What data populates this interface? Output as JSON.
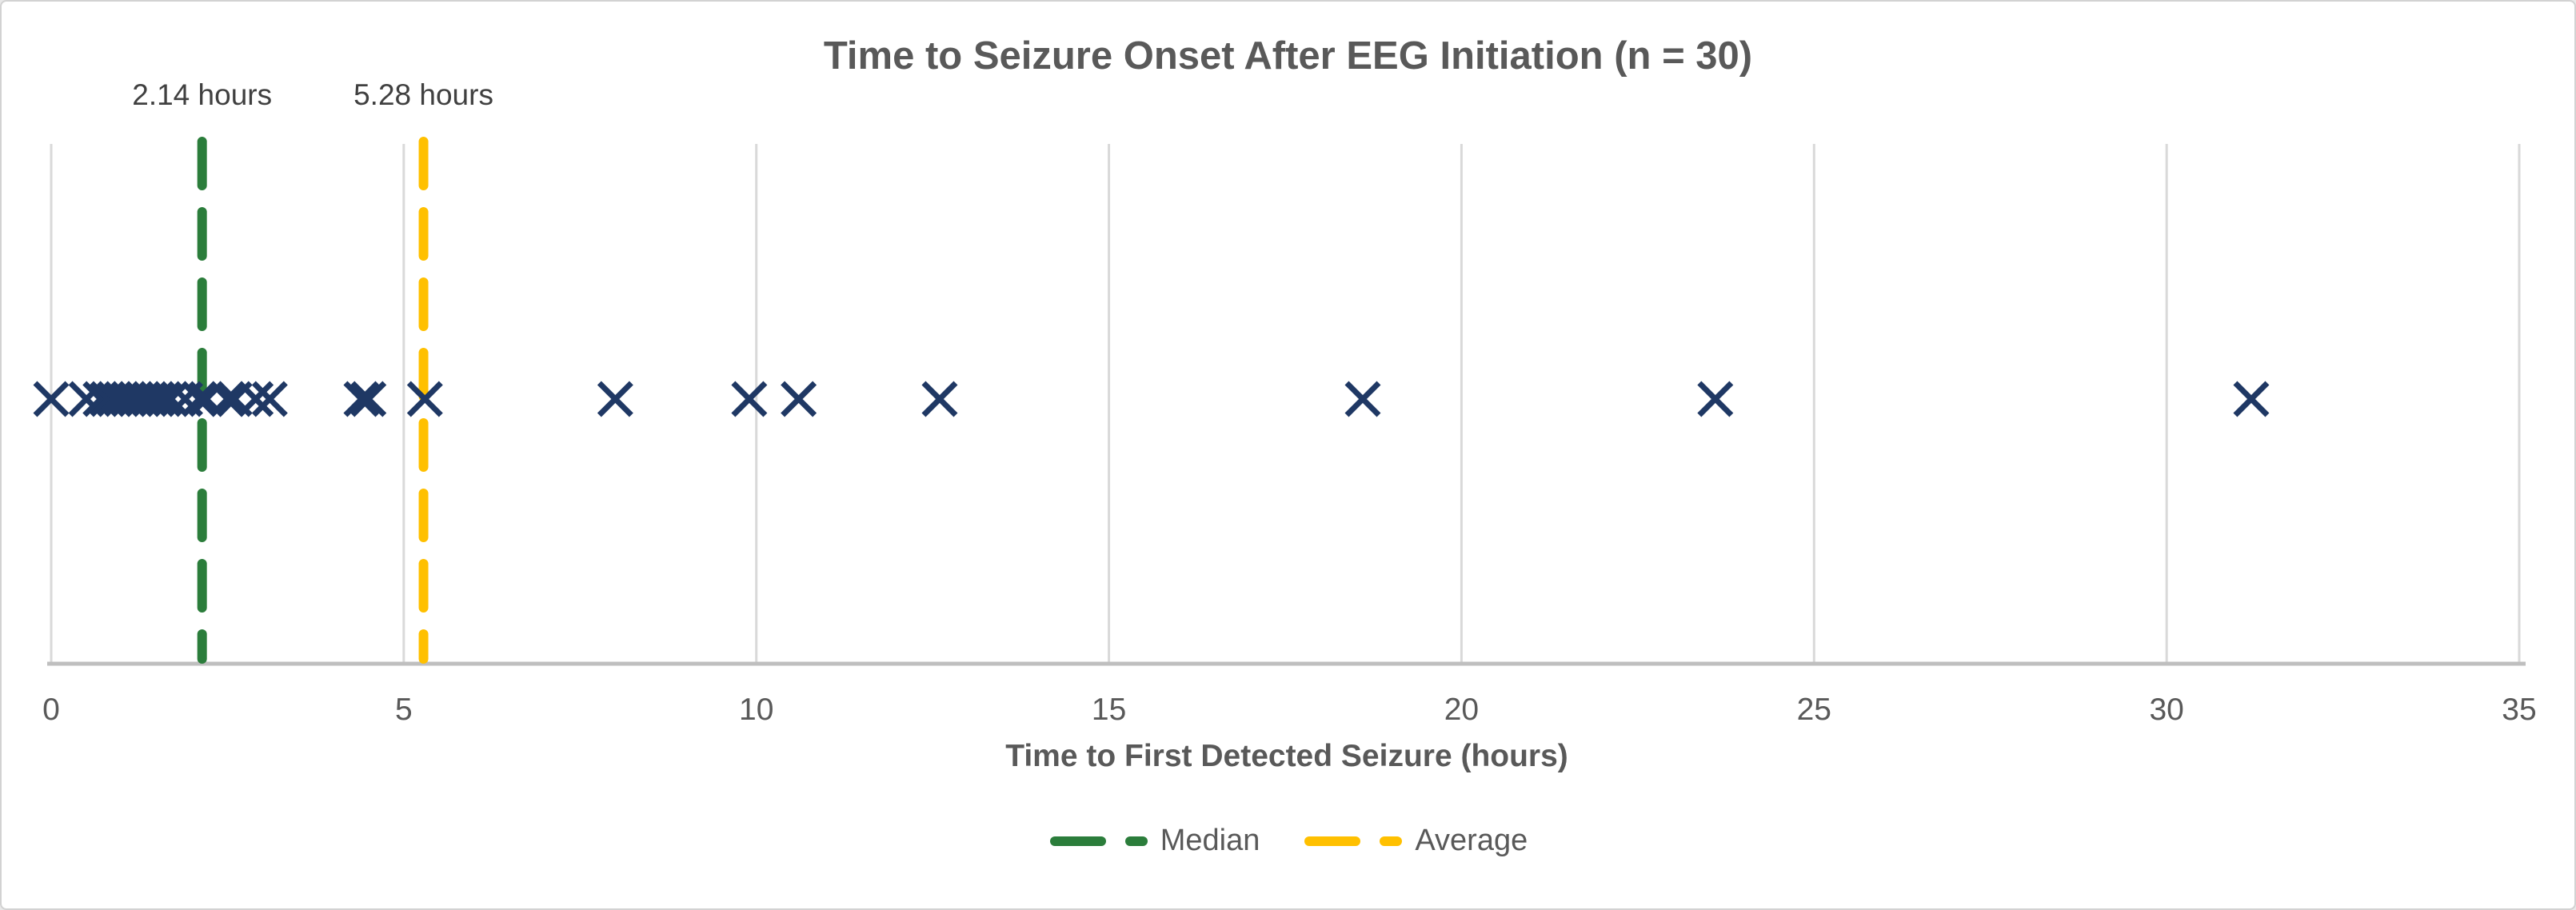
{
  "chart": {
    "title": "Time to Seizure Onset After EEG Initiation (n = 30)",
    "xlabel": "Time to First Detected Seizure (hours)",
    "annotations": {
      "median_label": "2.14 hours",
      "average_label": "5.28 hours"
    },
    "legend": {
      "median_label": "Median",
      "average_label": "Average"
    }
  },
  "chart_data": {
    "type": "scatter",
    "title": "Time to Seizure Onset After EEG Initiation (n = 30)",
    "xlabel": "Time to First Detected Seizure (hours)",
    "n": 30,
    "x": [
      0.0,
      0.5,
      0.7,
      0.8,
      0.9,
      1.0,
      1.1,
      1.2,
      1.3,
      1.4,
      1.5,
      1.6,
      1.7,
      1.9,
      2.1,
      2.2,
      2.5,
      2.6,
      2.9,
      3.1,
      4.4,
      4.5,
      5.3,
      8.0,
      9.9,
      10.6,
      12.6,
      18.6,
      23.6,
      31.2
    ],
    "median_value": 2.14,
    "average_value": 5.28,
    "median_annotation": "2.14 hours",
    "average_annotation": "5.28 hours",
    "xlim": [
      0,
      35
    ],
    "xticks": [
      0,
      5,
      10,
      15,
      20,
      25,
      30,
      35
    ],
    "grid": "vertical-gridlines-on",
    "marker": "x",
    "legend_position": "bottom",
    "legend_entries": [
      "Median",
      "Average"
    ],
    "colors": {
      "marker": "#1F3864",
      "median_line": "#2B7D3B",
      "average_line": "#FFC000",
      "gridline": "#D9D9D9",
      "axis_line": "#BFBFBF",
      "text": "#595959",
      "annotation_text": "#404040"
    }
  }
}
